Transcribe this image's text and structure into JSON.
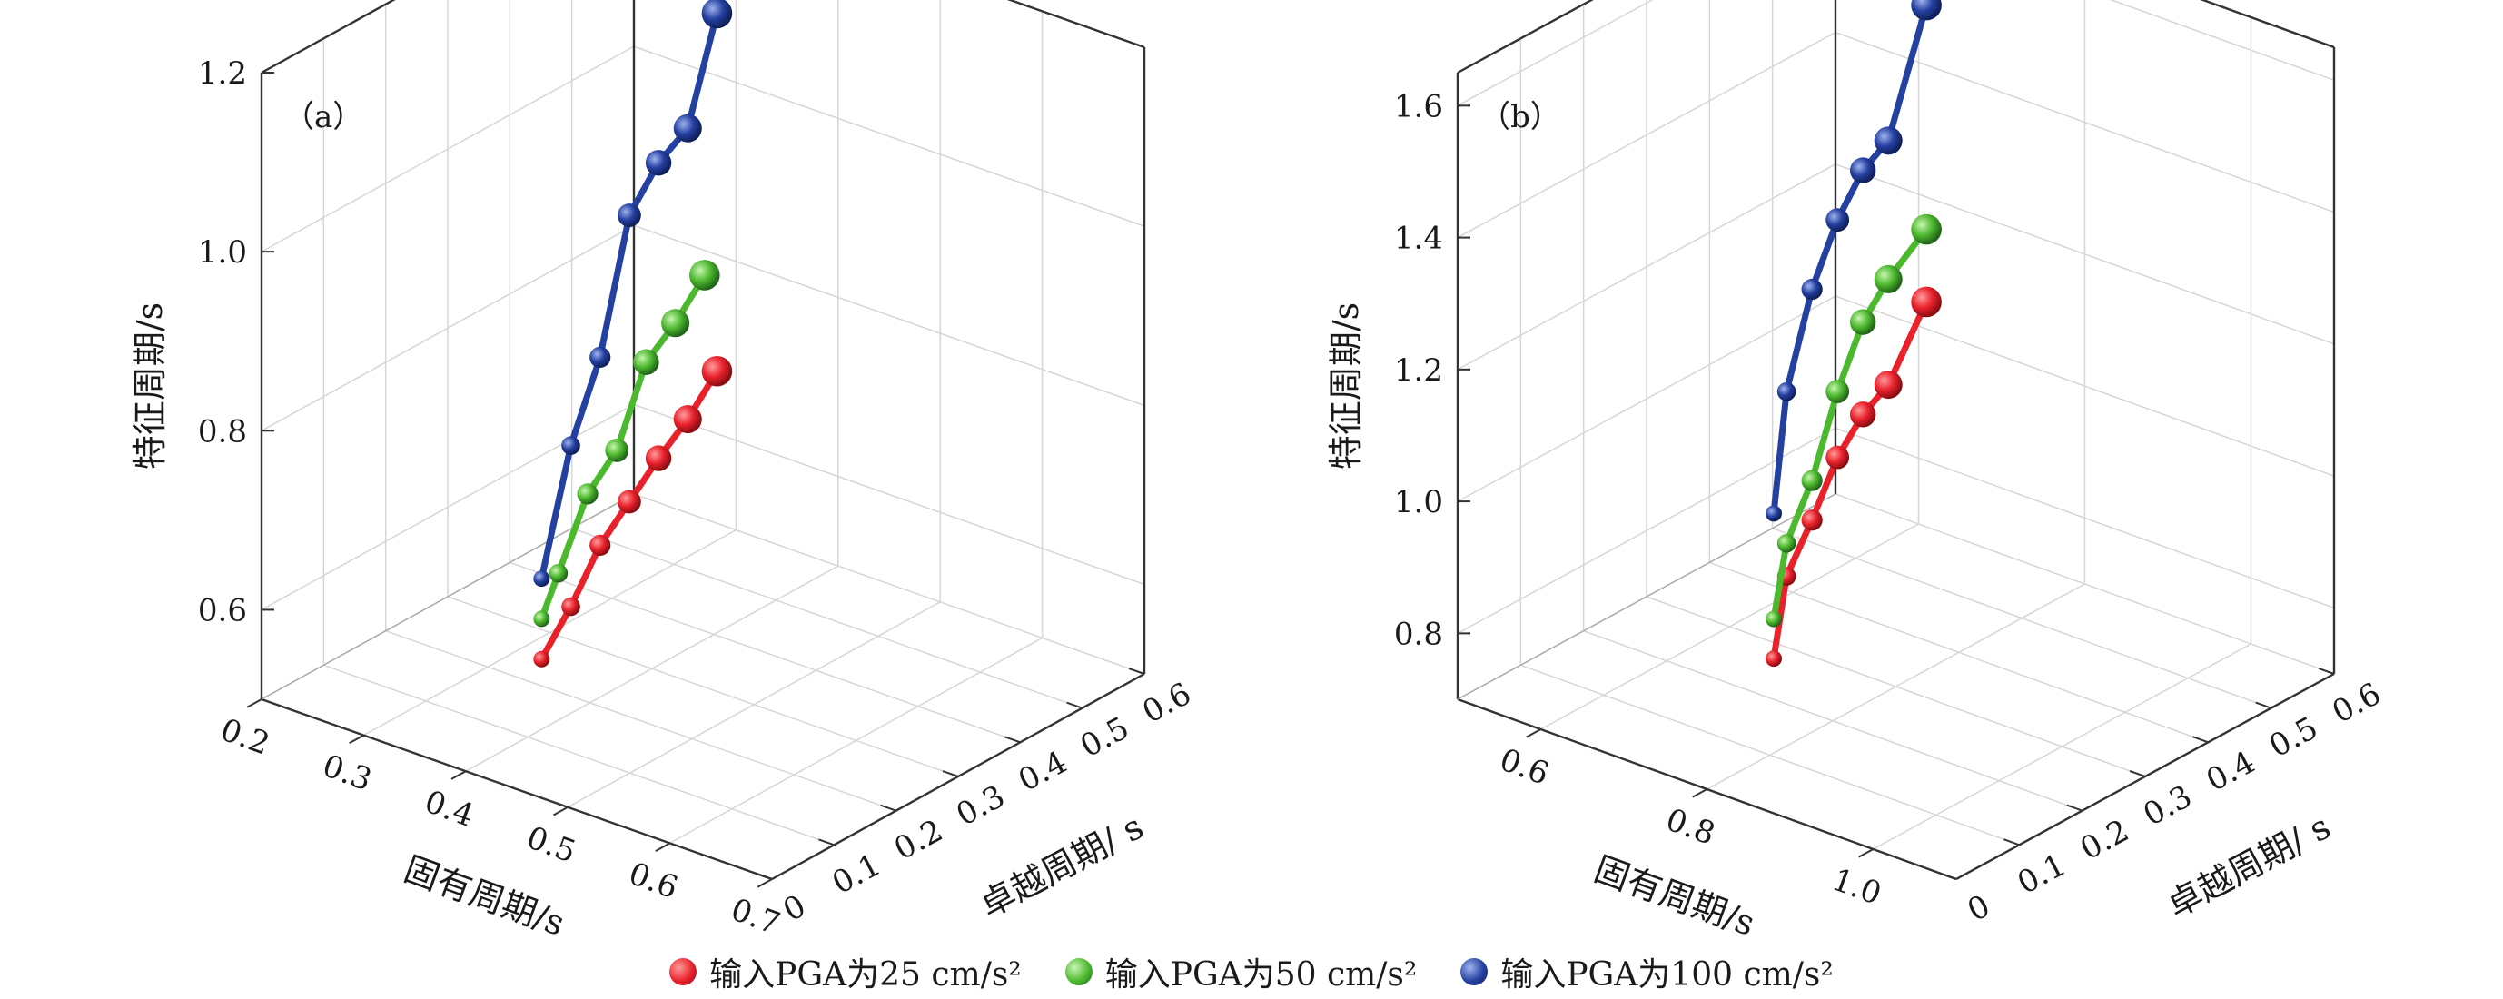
{
  "chart_data": [
    {
      "type": "line3d",
      "panel_label": "（a）",
      "xlabel": "固有周期/s",
      "ylabel": "卓越周期/ s",
      "zlabel": "特征周期/s",
      "x_ticks": [
        "0.2",
        "0.3",
        "0.4",
        "0.5",
        "0.6",
        "0.7"
      ],
      "y_ticks": [
        "0",
        "0.1",
        "0.2",
        "0.3",
        "0.4",
        "0.5",
        "0.6"
      ],
      "z_ticks": [
        "0.6",
        "0.8",
        "1.0",
        "1.2"
      ],
      "xlim": [
        0.2,
        0.7
      ],
      "ylim": [
        0,
        0.6
      ],
      "zlim": [
        0.5,
        1.2
      ],
      "grid": true,
      "series": [
        {
          "name": "输入PGA为25 cm/s²",
          "color": "#e8212b",
          "points": [
            [
              0.45,
              0.04,
              0.63
            ],
            [
              0.43,
              0.12,
              0.65
            ],
            [
              0.41,
              0.2,
              0.68
            ],
            [
              0.39,
              0.28,
              0.69
            ],
            [
              0.37,
              0.36,
              0.7
            ],
            [
              0.35,
              0.44,
              0.705
            ],
            [
              0.33,
              0.52,
              0.72
            ]
          ]
        },
        {
          "name": "输入PGA为50 cm/s²",
          "color": "#4cb82e",
          "points": [
            [
              0.45,
              0.04,
              0.675
            ],
            [
              0.43,
              0.1,
              0.695
            ],
            [
              0.41,
              0.18,
              0.745
            ],
            [
              0.39,
              0.26,
              0.755
            ],
            [
              0.37,
              0.34,
              0.815
            ],
            [
              0.35,
              0.42,
              0.82
            ],
            [
              0.33,
              0.5,
              0.835
            ]
          ]
        },
        {
          "name": "输入PGA为100 cm/s²",
          "color": "#2440a0",
          "points": [
            [
              0.45,
              0.04,
              0.72
            ],
            [
              0.43,
              0.12,
              0.83
            ],
            [
              0.41,
              0.2,
              0.89
            ],
            [
              0.39,
              0.28,
              1.01
            ],
            [
              0.37,
              0.36,
              1.03
            ],
            [
              0.35,
              0.44,
              1.03
            ],
            [
              0.33,
              0.52,
              1.12
            ]
          ]
        }
      ]
    },
    {
      "type": "line3d",
      "panel_label": "（b）",
      "xlabel": "固有周期/s",
      "ylabel": "卓越周期/ s",
      "zlabel": "特征周期/s",
      "x_ticks": [
        "0.6",
        "0.8",
        "1.0"
      ],
      "x_tick_values": [
        0.6,
        0.8,
        1.0
      ],
      "y_ticks": [
        "0",
        "0.1",
        "0.2",
        "0.3",
        "0.4",
        "0.5",
        "0.6"
      ],
      "z_ticks": [
        "0.8",
        "1.0",
        "1.2",
        "1.4",
        "1.6"
      ],
      "xlim": [
        0.5,
        1.1
      ],
      "ylim": [
        0,
        0.6
      ],
      "zlim": [
        0.7,
        1.65
      ],
      "grid": true,
      "series": [
        {
          "name": "输入PGA为25 cm/s²",
          "color": "#e8212b",
          "points": [
            [
              0.85,
              0.04,
              0.9
            ],
            [
              0.82,
              0.1,
              0.98
            ],
            [
              0.79,
              0.18,
              1.01
            ],
            [
              0.76,
              0.26,
              1.05
            ],
            [
              0.73,
              0.34,
              1.06
            ],
            [
              0.7,
              0.42,
              1.05
            ],
            [
              0.67,
              0.52,
              1.11
            ]
          ]
        },
        {
          "name": "输入PGA为50 cm/s²",
          "color": "#4cb82e",
          "points": [
            [
              0.85,
              0.04,
              0.96
            ],
            [
              0.82,
              0.1,
              1.03
            ],
            [
              0.79,
              0.18,
              1.07
            ],
            [
              0.76,
              0.26,
              1.15
            ],
            [
              0.73,
              0.34,
              1.2
            ],
            [
              0.7,
              0.42,
              1.21
            ],
            [
              0.67,
              0.52,
              1.22
            ]
          ]
        },
        {
          "name": "输入PGA为100 cm/s²",
          "color": "#2440a0",
          "points": [
            [
              0.85,
              0.04,
              1.12
            ],
            [
              0.82,
              0.1,
              1.26
            ],
            [
              0.79,
              0.18,
              1.36
            ],
            [
              0.76,
              0.26,
              1.41
            ],
            [
              0.73,
              0.34,
              1.43
            ],
            [
              0.7,
              0.42,
              1.42
            ],
            [
              0.67,
              0.52,
              1.56
            ]
          ]
        }
      ]
    }
  ],
  "legend": [
    {
      "label": "输入PGA为25 cm/s²",
      "color": "#e8212b"
    },
    {
      "label": "输入PGA为50 cm/s²",
      "color": "#4cb82e"
    },
    {
      "label": "输入PGA为100 cm/s²",
      "color": "#2440a0"
    }
  ]
}
